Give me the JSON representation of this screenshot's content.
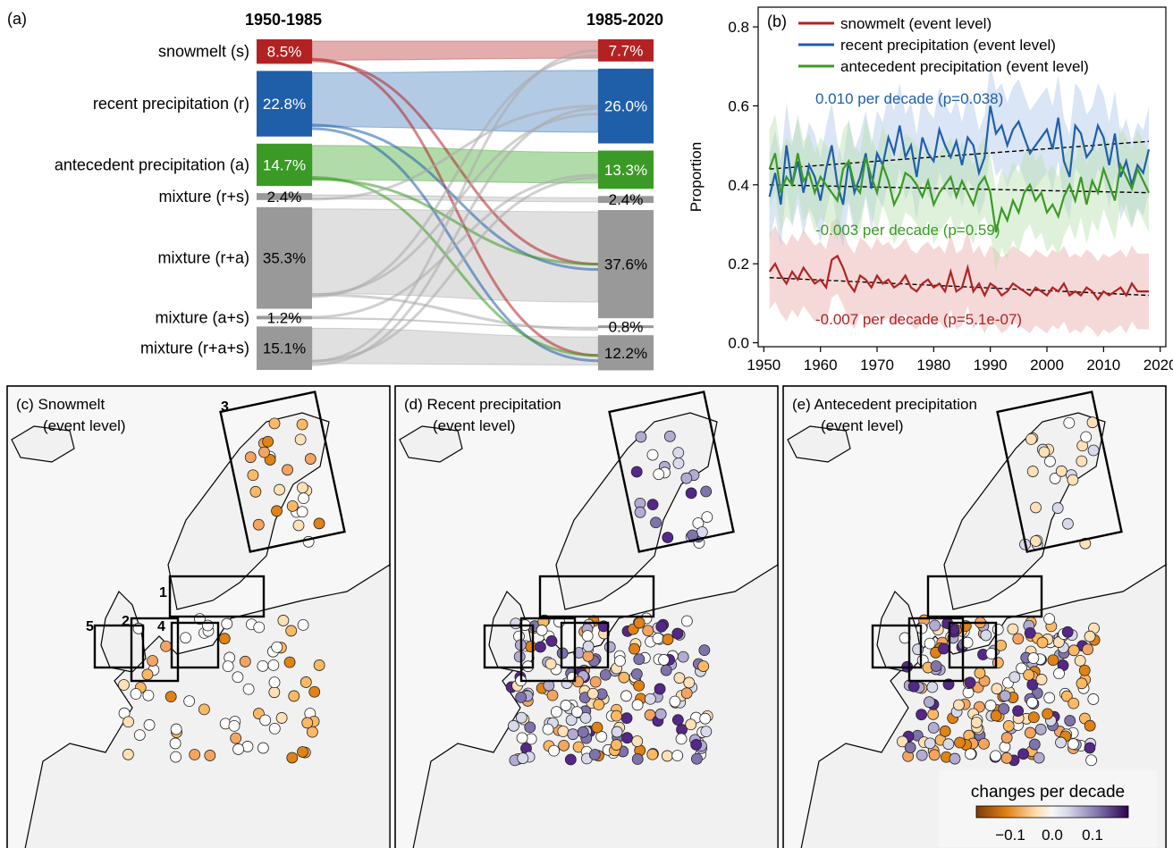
{
  "panel_a": {
    "label": "(a)",
    "period_left": "1950-1985",
    "period_right": "1985-2020",
    "rows": [
      {
        "label": "snowmelt (s)",
        "left": "8.5%",
        "right": "7.7%",
        "color": "#b22222"
      },
      {
        "label": "recent precipitation (r)",
        "left": "22.8%",
        "right": "26.0%",
        "color": "#1f5faa"
      },
      {
        "label": "antecedent precipitation (a)",
        "left": "14.7%",
        "right": "13.3%",
        "color": "#3a9a25"
      },
      {
        "label": "mixture (r+s)",
        "left": "2.4%",
        "right": "2.4%",
        "color": "#999999"
      },
      {
        "label": "mixture (r+a)",
        "left": "35.3%",
        "right": "37.6%",
        "color": "#999999"
      },
      {
        "label": "mixture (a+s)",
        "left": "1.2%",
        "right": "0.8%",
        "color": "#999999"
      },
      {
        "label": "mixture (r+a+s)",
        "left": "15.1%",
        "right": "12.2%",
        "color": "#999999"
      }
    ]
  },
  "panel_b": {
    "label": "(b)",
    "ylabel": "Proportion",
    "legend": [
      "snowmelt (event level)",
      "recent precipitation (event level)",
      "antecedent precipitation (event level)"
    ],
    "annotations": [
      "0.010 per decade (p=0.038)",
      "-0.003 per decade (p=0.59)",
      "-0.007 per decade (p=5.1e-07)"
    ]
  },
  "maps": {
    "c_title": "(c) Snowmelt",
    "d_title": "(d) Recent precipitation",
    "e_title": "(e) Antecedent precipitation",
    "subtitle": "(event level)",
    "region_labels": [
      "1",
      "2",
      "3",
      "4",
      "5"
    ],
    "colorbar_label": "changes per decade",
    "colorbar_ticks": [
      "−0.1",
      "0.0",
      "0.1"
    ]
  },
  "chart_data": [
    {
      "type": "table",
      "title": "",
      "categories": [
        "snowmelt (s)",
        "recent precipitation (r)",
        "antecedent precipitation (a)",
        "mixture (r+s)",
        "mixture (r+a)",
        "mixture (a+s)",
        "mixture (r+a+s)"
      ],
      "series": [
        {
          "name": "1950-1985",
          "values": [
            8.5,
            22.8,
            14.7,
            2.4,
            35.3,
            1.2,
            15.1
          ]
        },
        {
          "name": "1985-2020",
          "values": [
            7.7,
            26.0,
            13.3,
            2.4,
            37.6,
            0.8,
            12.2
          ]
        }
      ]
    },
    {
      "type": "line",
      "xlabel": "",
      "ylabel": "Proportion",
      "xlim": [
        1949,
        2021
      ],
      "ylim": [
        -0.01,
        0.85
      ],
      "xticks": [
        1950,
        1960,
        1970,
        1980,
        1990,
        2000,
        2010,
        2020
      ],
      "yticks": [
        0.0,
        0.2,
        0.4,
        0.6,
        0.8
      ],
      "grid": false,
      "legend_position": "top",
      "x": [
        1951,
        1952,
        1953,
        1954,
        1955,
        1956,
        1957,
        1958,
        1959,
        1960,
        1961,
        1962,
        1963,
        1964,
        1965,
        1966,
        1967,
        1968,
        1969,
        1970,
        1971,
        1972,
        1973,
        1974,
        1975,
        1976,
        1977,
        1978,
        1979,
        1980,
        1981,
        1982,
        1983,
        1984,
        1985,
        1986,
        1987,
        1988,
        1989,
        1990,
        1991,
        1992,
        1993,
        1994,
        1995,
        1996,
        1997,
        1998,
        1999,
        2000,
        2001,
        2002,
        2003,
        2004,
        2005,
        2006,
        2007,
        2008,
        2009,
        2010,
        2011,
        2012,
        2013,
        2014,
        2015,
        2016,
        2017,
        2018
      ],
      "series": [
        {
          "name": "snowmelt (event level)",
          "color": "#b22222",
          "values": [
            0.18,
            0.2,
            0.17,
            0.15,
            0.18,
            0.16,
            0.19,
            0.17,
            0.15,
            0.16,
            0.14,
            0.21,
            0.22,
            0.19,
            0.15,
            0.13,
            0.17,
            0.16,
            0.14,
            0.17,
            0.15,
            0.16,
            0.14,
            0.15,
            0.17,
            0.14,
            0.13,
            0.15,
            0.16,
            0.14,
            0.15,
            0.13,
            0.18,
            0.13,
            0.14,
            0.19,
            0.13,
            0.15,
            0.12,
            0.15,
            0.14,
            0.12,
            0.13,
            0.15,
            0.14,
            0.13,
            0.12,
            0.14,
            0.13,
            0.12,
            0.14,
            0.13,
            0.15,
            0.12,
            0.13,
            0.12,
            0.14,
            0.13,
            0.11,
            0.13,
            0.12,
            0.13,
            0.14,
            0.12,
            0.15,
            0.13,
            0.13,
            0.13
          ],
          "band": [
            0.08,
            0.32
          ]
        },
        {
          "name": "recent precipitation (event level)",
          "color": "#1f5faa",
          "values": [
            0.37,
            0.43,
            0.35,
            0.5,
            0.4,
            0.46,
            0.38,
            0.45,
            0.42,
            0.36,
            0.44,
            0.5,
            0.4,
            0.35,
            0.46,
            0.38,
            0.42,
            0.48,
            0.39,
            0.48,
            0.45,
            0.52,
            0.48,
            0.55,
            0.47,
            0.5,
            0.42,
            0.52,
            0.48,
            0.46,
            0.54,
            0.5,
            0.47,
            0.51,
            0.45,
            0.52,
            0.5,
            0.43,
            0.47,
            0.6,
            0.53,
            0.55,
            0.5,
            0.54,
            0.56,
            0.52,
            0.48,
            0.5,
            0.52,
            0.54,
            0.49,
            0.57,
            0.46,
            0.42,
            0.55,
            0.53,
            0.47,
            0.49,
            0.55,
            0.52,
            0.45,
            0.53,
            0.42,
            0.46,
            0.4,
            0.45,
            0.43,
            0.49
          ],
          "band": [
            0.33,
            0.6
          ]
        },
        {
          "name": "antecedent precipitation (event level)",
          "color": "#3a9a25",
          "values": [
            0.44,
            0.48,
            0.38,
            0.42,
            0.4,
            0.48,
            0.41,
            0.43,
            0.38,
            0.42,
            0.4,
            0.38,
            0.36,
            0.44,
            0.46,
            0.4,
            0.38,
            0.47,
            0.42,
            0.38,
            0.45,
            0.41,
            0.35,
            0.38,
            0.43,
            0.42,
            0.4,
            0.37,
            0.41,
            0.35,
            0.38,
            0.4,
            0.42,
            0.37,
            0.41,
            0.38,
            0.35,
            0.4,
            0.42,
            0.38,
            0.28,
            0.34,
            0.31,
            0.36,
            0.33,
            0.38,
            0.4,
            0.36,
            0.38,
            0.33,
            0.35,
            0.32,
            0.37,
            0.4,
            0.36,
            0.42,
            0.35,
            0.41,
            0.38,
            0.44,
            0.4,
            0.36,
            0.45,
            0.42,
            0.39,
            0.44,
            0.41,
            0.38
          ],
          "band": [
            0.28,
            0.53
          ]
        }
      ],
      "trend_lines": [
        {
          "series": "recent precipitation (event level)",
          "start": 0.44,
          "end": 0.51
        },
        {
          "series": "antecedent precipitation (event level)",
          "start": 0.4,
          "end": 0.38
        },
        {
          "series": "snowmelt (event level)",
          "start": 0.165,
          "end": 0.12
        }
      ]
    }
  ]
}
